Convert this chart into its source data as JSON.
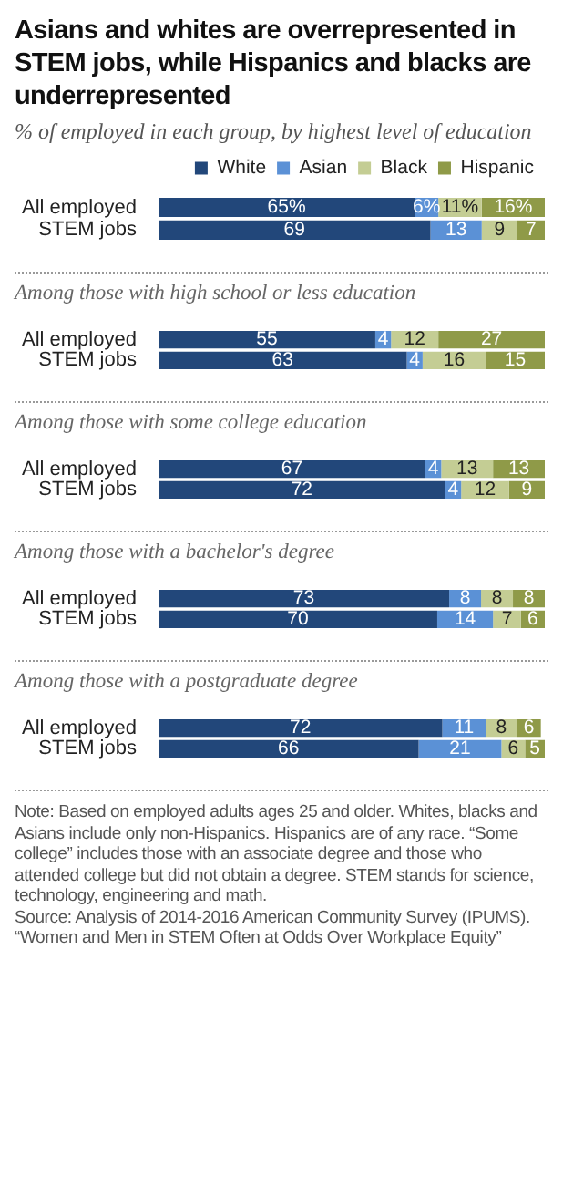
{
  "chart_data": [
    {
      "type": "bar",
      "orientation": "horizontal",
      "stacked": true,
      "title": "Asians and whites are overrepresented in STEM jobs, while Hispanics and blacks are underrepresented",
      "subtitle": "% of employed in each group, by highest level of education",
      "legend": "top right",
      "tick_labels": "y",
      "categories": [
        "All employed",
        "STEM jobs"
      ],
      "series": [
        {
          "name": "White",
          "color": "#22477a",
          "values": [
            65,
            69
          ],
          "value_labels": [
            "65%",
            "69"
          ]
        },
        {
          "name": "Asian",
          "color": "#5b91d6",
          "values": [
            6,
            13
          ],
          "value_labels": [
            "6%",
            "13"
          ]
        },
        {
          "name": "Black",
          "color": "#c4cd94",
          "values": [
            11,
            9
          ],
          "value_labels": [
            "11%",
            "9"
          ]
        },
        {
          "name": "Hispanic",
          "color": "#8f9a48",
          "values": [
            16,
            7
          ],
          "value_labels": [
            "16%",
            "7"
          ]
        }
      ]
    },
    {
      "type": "bar",
      "orientation": "horizontal",
      "stacked": true,
      "title": "Among those with high school or less education",
      "tick_labels": "y",
      "data_labels": true,
      "categories": [
        "All employed",
        "STEM jobs"
      ],
      "series": [
        {
          "color": "#22477a",
          "values": [
            55,
            63
          ]
        },
        {
          "color": "#5b91d6",
          "values": [
            4,
            4
          ]
        },
        {
          "color": "#c4cd94",
          "values": [
            12,
            16
          ]
        },
        {
          "color": "#8f9a48",
          "values": [
            27,
            15
          ]
        }
      ]
    },
    {
      "type": "bar",
      "orientation": "horizontal",
      "stacked": true,
      "title": "Among those with some college education",
      "tick_labels": "y",
      "data_labels": true,
      "categories": [
        "All employed",
        "STEM jobs"
      ],
      "series": [
        {
          "color": "#22477a",
          "values": [
            67,
            72
          ]
        },
        {
          "color": "#5b91d6",
          "values": [
            4,
            4
          ]
        },
        {
          "color": "#c4cd94",
          "values": [
            13,
            12
          ]
        },
        {
          "color": "#8f9a48",
          "values": [
            13,
            9
          ]
        }
      ]
    },
    {
      "type": "bar",
      "orientation": "horizontal",
      "stacked": true,
      "title": "Among those with a bachelor's degree",
      "tick_labels": "y",
      "data_labels": true,
      "categories": [
        "All employed",
        "STEM jobs"
      ],
      "series": [
        {
          "color": "#22477a",
          "values": [
            73,
            70
          ]
        },
        {
          "color": "#5b91d6",
          "values": [
            8,
            14
          ]
        },
        {
          "color": "#c4cd94",
          "values": [
            8,
            7
          ]
        },
        {
          "color": "#8f9a48",
          "values": [
            8,
            6
          ]
        }
      ]
    },
    {
      "type": "bar",
      "orientation": "horizontal",
      "stacked": true,
      "title": "Among those with a postgraduate degree",
      "tick_labels": "y",
      "data_labels": true,
      "categories": [
        "All employed",
        "STEM jobs"
      ],
      "series": [
        {
          "color": "#22477a",
          "values": [
            72,
            66
          ]
        },
        {
          "color": "#5b91d6",
          "values": [
            11,
            21
          ]
        },
        {
          "color": "#c4cd94",
          "values": [
            8,
            6
          ]
        },
        {
          "color": "#8f9a48",
          "values": [
            6,
            5
          ]
        }
      ],
      "annotations": [
        "Note: Based on employed adults ages 25 and older. Whites, blacks and Asians include only non-Hispanics. Hispanics are of any race. “Some college” includes those with an associate degree and those who attended college but did not obtain a degree. STEM stands for science, technology, engineering and math.",
        "Source: Analysis of 2014-2016 American Community Survey (IPUMS).",
        "“Women and Men in STEM Often at Odds Over Workplace Equity”"
      ]
    }
  ]
}
